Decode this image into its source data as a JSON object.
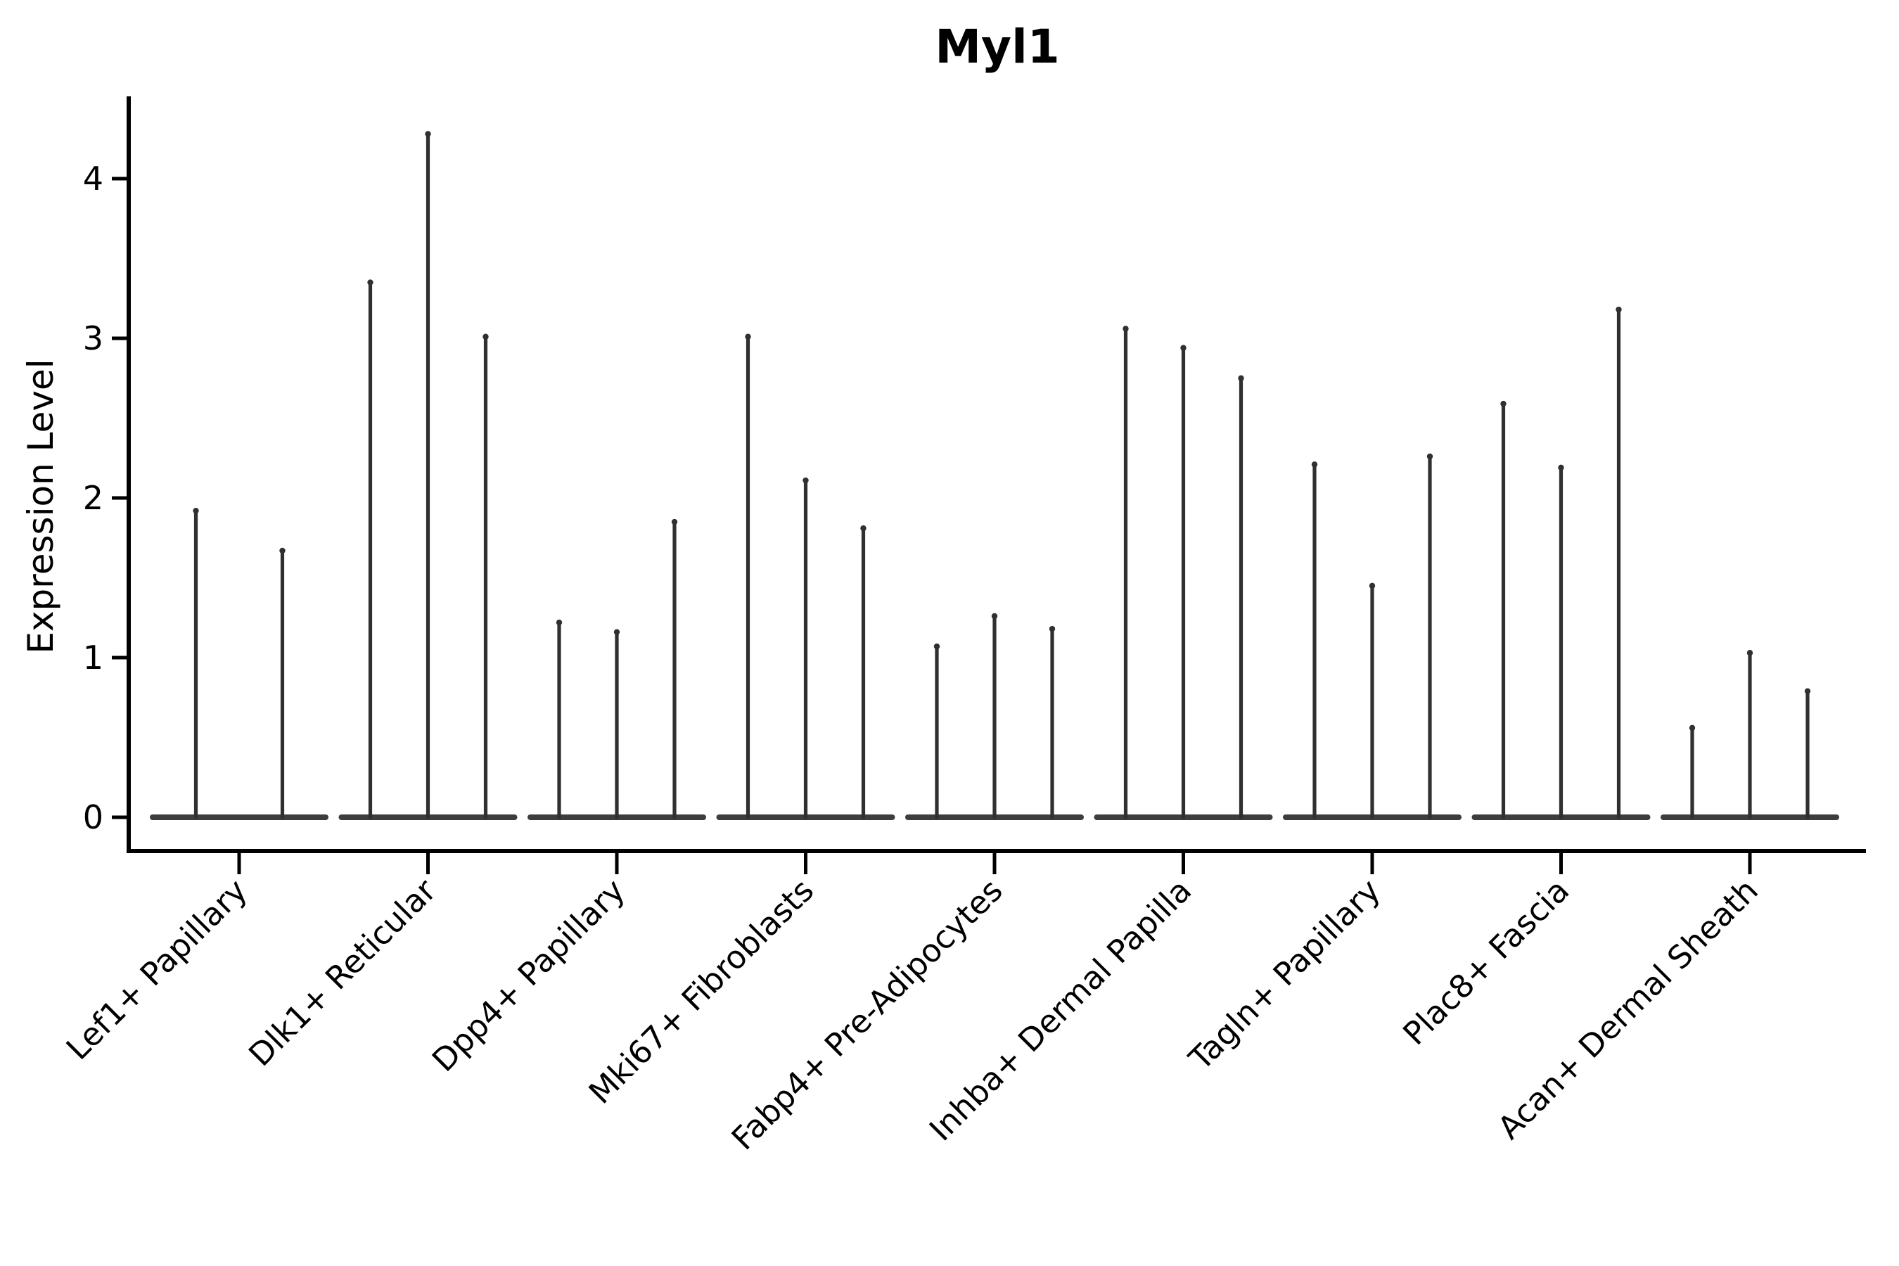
{
  "chart_data": {
    "type": "violin",
    "title": "Myl1",
    "ylabel": "Expression Level",
    "xlabel": "",
    "yticks": [
      0,
      1,
      2,
      3,
      4
    ],
    "ylim": [
      -0.21,
      4.5
    ],
    "grid": false,
    "legend": null,
    "categories": [
      "Lef1+ Papillary",
      "Dlk1+ Reticular",
      "Dpp4+ Papillary",
      "Mki67+ Fibroblasts",
      "Fabp4+ Pre-Adipocytes",
      "Inhba+ Dermal Papilla",
      "Tagln+ Papillary",
      "Plac8+ Fascia",
      "Acan+ Dermal Sheath"
    ],
    "series": [
      {
        "name": "Lef1+ Papillary",
        "values": [
          1.92,
          1.67
        ]
      },
      {
        "name": "Dlk1+ Reticular",
        "values": [
          3.35,
          4.28,
          3.01
        ]
      },
      {
        "name": "Dpp4+ Papillary",
        "values": [
          1.22,
          1.16,
          1.85
        ]
      },
      {
        "name": "Mki67+ Fibroblasts",
        "values": [
          3.01,
          2.11,
          1.81
        ]
      },
      {
        "name": "Fabp4+ Pre-Adipocytes",
        "values": [
          1.07,
          1.26,
          1.18
        ]
      },
      {
        "name": "Inhba+ Dermal Papilla",
        "values": [
          3.06,
          2.94,
          2.75
        ]
      },
      {
        "name": "Tagln+ Papillary",
        "values": [
          2.21,
          1.45,
          2.26
        ]
      },
      {
        "name": "Plac8+ Fascia",
        "values": [
          2.59,
          2.19,
          3.18
        ]
      },
      {
        "name": "Acan+ Dermal Sheath",
        "values": [
          0.56,
          1.03,
          0.79
        ]
      }
    ]
  },
  "colors": {
    "axis": "#000000",
    "spike": "#303030",
    "baseline_violin": "#3d3d3d",
    "text": "#000000",
    "background": "#ffffff"
  }
}
